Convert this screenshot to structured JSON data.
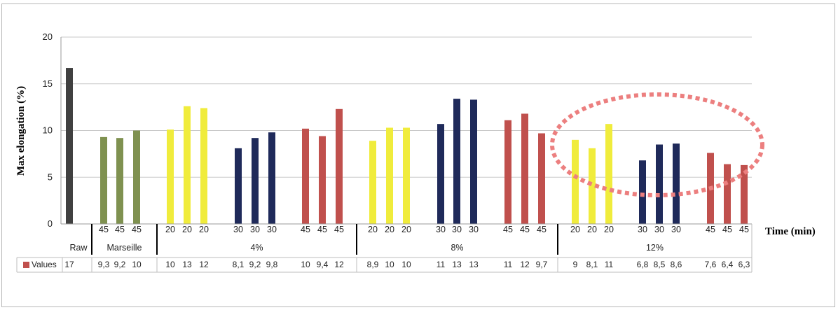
{
  "chart_data": {
    "type": "bar",
    "ylabel": "Max elongation (%)",
    "xunit": "Time (min)",
    "ylim": [
      0,
      20
    ],
    "yticks": [
      0,
      5,
      10,
      15,
      20
    ],
    "grid": true,
    "legend_label": "Values",
    "legend_color": "#c0504d",
    "colors": {
      "raw": "#404040",
      "marseille": "#7f9150",
      "t20": "#f0ec3c",
      "t30": "#1f2a5a",
      "t45": "#c0504d",
      "highlight": "#ec7f7f"
    },
    "groups": [
      {
        "label": "Raw",
        "subgroups": [
          {
            "color": "raw",
            "bars": [
              {
                "time": "",
                "value": 16.7,
                "label": "17"
              }
            ]
          }
        ]
      },
      {
        "label": "Marseille",
        "subgroups": [
          {
            "color": "marseille",
            "bars": [
              {
                "time": "45",
                "value": 9.3,
                "label": "9,3"
              },
              {
                "time": "45",
                "value": 9.2,
                "label": "9,2"
              },
              {
                "time": "45",
                "value": 10.0,
                "label": "10"
              }
            ]
          }
        ]
      },
      {
        "label": "4%",
        "subgroups": [
          {
            "color": "t20",
            "bars": [
              {
                "time": "20",
                "value": 10.1,
                "label": "10"
              },
              {
                "time": "20",
                "value": 12.6,
                "label": "13"
              },
              {
                "time": "20",
                "value": 12.4,
                "label": "12"
              }
            ]
          },
          {
            "color": "t30",
            "bars": [
              {
                "time": "30",
                "value": 8.1,
                "label": "8,1"
              },
              {
                "time": "30",
                "value": 9.2,
                "label": "9,2"
              },
              {
                "time": "30",
                "value": 9.8,
                "label": "9,8"
              }
            ]
          },
          {
            "color": "t45",
            "bars": [
              {
                "time": "45",
                "value": 10.2,
                "label": "10"
              },
              {
                "time": "45",
                "value": 9.4,
                "label": "9,4"
              },
              {
                "time": "45",
                "value": 12.3,
                "label": "12"
              }
            ]
          }
        ]
      },
      {
        "label": "8%",
        "subgroups": [
          {
            "color": "t20",
            "bars": [
              {
                "time": "20",
                "value": 8.9,
                "label": "8,9"
              },
              {
                "time": "20",
                "value": 10.3,
                "label": "10"
              },
              {
                "time": "20",
                "value": 10.3,
                "label": "10"
              }
            ]
          },
          {
            "color": "t30",
            "bars": [
              {
                "time": "30",
                "value": 10.7,
                "label": "11"
              },
              {
                "time": "30",
                "value": 13.4,
                "label": "13"
              },
              {
                "time": "30",
                "value": 13.3,
                "label": "13"
              }
            ]
          },
          {
            "color": "t45",
            "bars": [
              {
                "time": "45",
                "value": 11.1,
                "label": "11"
              },
              {
                "time": "45",
                "value": 11.8,
                "label": "12"
              },
              {
                "time": "45",
                "value": 9.7,
                "label": "9,7"
              }
            ]
          }
        ]
      },
      {
        "label": "12%",
        "subgroups": [
          {
            "color": "t20",
            "bars": [
              {
                "time": "20",
                "value": 9.0,
                "label": "9"
              },
              {
                "time": "20",
                "value": 8.1,
                "label": "8,1"
              },
              {
                "time": "20",
                "value": 10.7,
                "label": "11"
              }
            ]
          },
          {
            "color": "t30",
            "bars": [
              {
                "time": "30",
                "value": 6.8,
                "label": "6,8"
              },
              {
                "time": "30",
                "value": 8.5,
                "label": "8,5"
              },
              {
                "time": "30",
                "value": 8.6,
                "label": "8,6"
              }
            ]
          },
          {
            "color": "t45",
            "bars": [
              {
                "time": "45",
                "value": 7.6,
                "label": "7,6"
              },
              {
                "time": "45",
                "value": 6.4,
                "label": "6,4"
              },
              {
                "time": "45",
                "value": 6.3,
                "label": "6,3"
              }
            ]
          }
        ]
      }
    ]
  }
}
